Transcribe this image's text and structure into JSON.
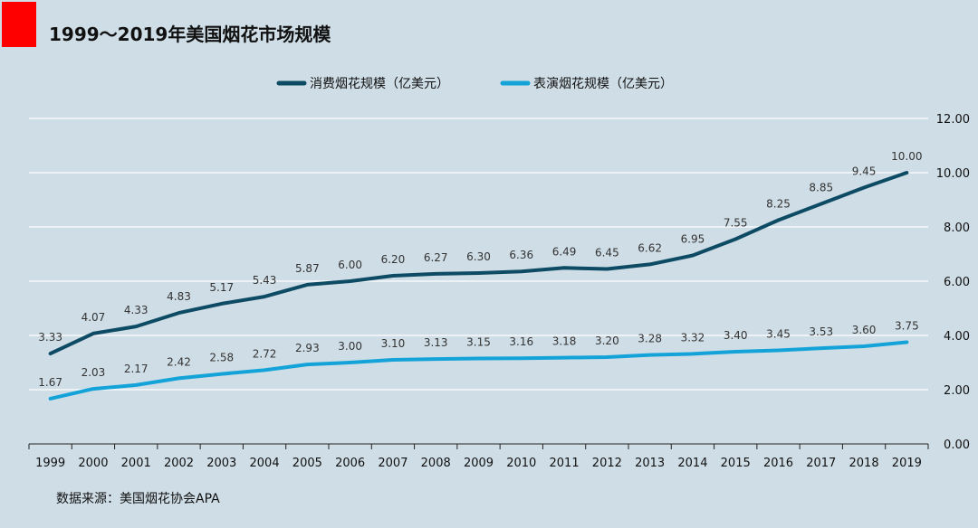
{
  "title": "1999～2019年美国烟花市场规模",
  "source": "数据来源：美国烟花协会APA",
  "colors": {
    "accent": "#ff0000",
    "series1": "#0d4a63",
    "series2": "#14a3d8",
    "background": "#cfdde6"
  },
  "chart_data": {
    "type": "line",
    "title": "1999～2019年美国烟花市场规模",
    "categories": [
      "1999",
      "2000",
      "2001",
      "2002",
      "2003",
      "2004",
      "2005",
      "2006",
      "2007",
      "2008",
      "2009",
      "2010",
      "2011",
      "2012",
      "2013",
      "2014",
      "2015",
      "2016",
      "2017",
      "2018",
      "2019"
    ],
    "series": [
      {
        "name": "消费烟花规模（亿美元）",
        "color": "#0d4a63",
        "values": [
          3.33,
          4.07,
          4.33,
          4.83,
          5.17,
          5.43,
          5.87,
          6.0,
          6.2,
          6.27,
          6.3,
          6.36,
          6.49,
          6.45,
          6.62,
          6.95,
          7.55,
          8.25,
          8.85,
          9.45,
          10.0
        ]
      },
      {
        "name": "表演烟花规模（亿美元）",
        "color": "#14a3d8",
        "values": [
          1.67,
          2.03,
          2.17,
          2.42,
          2.58,
          2.72,
          2.93,
          3.0,
          3.1,
          3.13,
          3.15,
          3.16,
          3.18,
          3.2,
          3.28,
          3.32,
          3.4,
          3.45,
          3.53,
          3.6,
          3.75
        ]
      }
    ],
    "ylim": [
      0,
      12
    ],
    "yticks": [
      "0.00",
      "2.00",
      "4.00",
      "6.00",
      "8.00",
      "10.00",
      "12.00"
    ],
    "yaxis_position": "right",
    "legend_position": "top-center",
    "grid": true
  }
}
